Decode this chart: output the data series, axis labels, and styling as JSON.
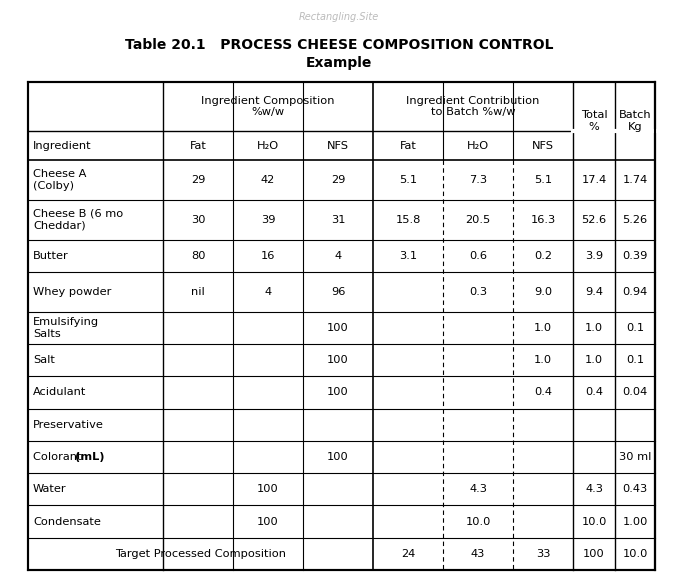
{
  "title_line1": "Table 20.1   PROCESS CHEESE COMPOSITION CONTROL",
  "title_line2": "Example",
  "watermark": "Rectangling.Site",
  "rows": [
    [
      "",
      "Ingredient Composition\n%w/w",
      "",
      "",
      "Ingredient Contribution\nto Batch %w/w",
      "",
      "",
      "Total\n%",
      "Batch\nKg"
    ],
    [
      "Ingredient",
      "Fat",
      "H₂O",
      "NFS",
      "Fat",
      "H₂O",
      "NFS",
      "",
      ""
    ],
    [
      "Cheese A\n(Colby)",
      "29",
      "42",
      "29",
      "5.1",
      "7.3",
      "5.1",
      "17.4",
      "1.74"
    ],
    [
      "Cheese B (6 mo\nCheddar)",
      "30",
      "39",
      "31",
      "15.8",
      "20.5",
      "16.3",
      "52.6",
      "5.26"
    ],
    [
      "Butter",
      "80",
      "16",
      "4",
      "3.1",
      "0.6",
      "0.2",
      "3.9",
      "0.39"
    ],
    [
      "Whey powder",
      "nil",
      "4",
      "96",
      "",
      "0.3",
      "9.0",
      "9.4",
      "0.94"
    ],
    [
      "Emulsifying\nSalts",
      "",
      "",
      "100",
      "",
      "",
      "1.0",
      "1.0",
      "0.1"
    ],
    [
      "Salt",
      "",
      "",
      "100",
      "",
      "",
      "1.0",
      "1.0",
      "0.1"
    ],
    [
      "Acidulant",
      "",
      "",
      "100",
      "",
      "",
      "0.4",
      "0.4",
      "0.04"
    ],
    [
      "Preservative",
      "",
      "",
      "",
      "",
      "",
      "",
      "",
      ""
    ],
    [
      "Colorant (mL)",
      "",
      "",
      "100",
      "",
      "",
      "",
      "",
      "30 ml"
    ],
    [
      "Water",
      "",
      "100",
      "",
      "",
      "4.3",
      "",
      "4.3",
      "0.43"
    ],
    [
      "Condensate",
      "",
      "100",
      "",
      "",
      "10.0",
      "",
      "10.0",
      "1.00"
    ],
    [
      "Target Processed Composition",
      "",
      "",
      "",
      "24",
      "43",
      "33",
      "100",
      "10.0"
    ]
  ],
  "background": "#ffffff",
  "text_color": "#000000",
  "border_color": "#000000"
}
